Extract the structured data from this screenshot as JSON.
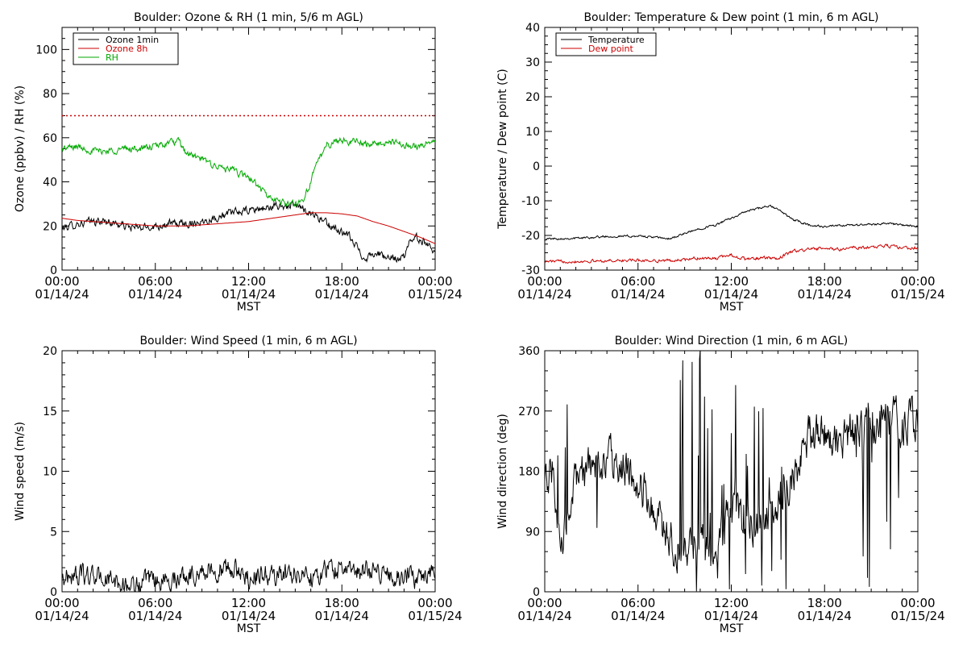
{
  "x_axis_ticks": [
    {
      "time": "00:00",
      "date": "01/14/24"
    },
    {
      "time": "06:00",
      "date": "01/14/24"
    },
    {
      "time": "12:00",
      "date": "01/14/24"
    },
    {
      "time": "18:00",
      "date": "01/14/24"
    },
    {
      "time": "00:00",
      "date": "01/15/24"
    }
  ],
  "x_axis_label": "MST",
  "chart_data": [
    {
      "type": "line",
      "title": "Boulder: Ozone & RH (1 min, 5/6 m AGL)",
      "xlabel": "MST",
      "ylabel": "Ozone (ppbv) / RH (%)",
      "xlim_hours": [
        0,
        24
      ],
      "ylim": [
        0,
        110
      ],
      "yticks": [
        0,
        20,
        40,
        60,
        80,
        100
      ],
      "legend_position": "top-left",
      "reference_line": {
        "y": 70,
        "style": "dotted",
        "color": "#cc0000"
      },
      "series": [
        {
          "name": "Ozone 1min",
          "color": "#000000",
          "noise": 1.5,
          "x": [
            0,
            1,
            2,
            3,
            4,
            5,
            6,
            7,
            8,
            9,
            10,
            11,
            12,
            13,
            14,
            15,
            15.5,
            16,
            16.5,
            17,
            17.5,
            18,
            18.5,
            19,
            19.5,
            20,
            20.5,
            21,
            21.5,
            22,
            22.5,
            23,
            23.5,
            24
          ],
          "y": [
            19,
            21,
            22,
            22,
            20,
            19,
            20,
            21,
            21,
            22,
            24,
            26,
            27,
            28,
            29,
            29,
            28,
            26,
            24,
            21,
            19,
            17,
            15,
            10,
            5,
            8,
            7,
            5,
            5,
            6,
            15,
            14,
            12,
            9
          ]
        },
        {
          "name": "Ozone 8h",
          "color": "#cc0000",
          "noise": 0,
          "x": [
            0,
            1,
            2,
            3,
            4,
            5,
            6,
            7,
            8,
            9,
            10,
            11,
            12,
            13,
            14,
            15,
            16,
            17,
            18,
            19,
            20,
            21,
            22,
            23,
            24
          ],
          "y": [
            23.5,
            22.5,
            22,
            21.5,
            21,
            20.5,
            20,
            20,
            20,
            20.5,
            21,
            21.5,
            22,
            23,
            24,
            25,
            26,
            26,
            25.5,
            24.5,
            22,
            20,
            17.5,
            15,
            12
          ]
        },
        {
          "name": "RH",
          "color": "#00aa00",
          "noise": 1.3,
          "x": [
            0,
            1,
            2,
            3,
            4,
            5,
            6,
            7,
            7.5,
            8,
            9,
            10,
            11,
            12,
            12.5,
            13,
            13.5,
            14,
            14.5,
            15,
            15.5,
            16,
            16.5,
            17,
            18,
            19,
            20,
            21,
            22,
            23,
            24
          ],
          "y": [
            55,
            56,
            54,
            54,
            55,
            55,
            56,
            58,
            58,
            53,
            50,
            47,
            45,
            42,
            39,
            35,
            32,
            31,
            30,
            30,
            32,
            40,
            50,
            57,
            59,
            58,
            57,
            58,
            57,
            56,
            59
          ]
        }
      ]
    },
    {
      "type": "line",
      "title": "Boulder: Temperature & Dew point (1 min, 6 m AGL)",
      "xlabel": "MST",
      "ylabel": "Temperature / Dew point (C)",
      "xlim_hours": [
        0,
        24
      ],
      "ylim": [
        -30,
        40
      ],
      "yticks": [
        -30,
        -20,
        -10,
        0,
        10,
        20,
        30,
        40
      ],
      "legend_position": "top-left",
      "series": [
        {
          "name": "Temperature",
          "color": "#000000",
          "noise": 0.25,
          "x": [
            0,
            2,
            4,
            6,
            7,
            8,
            9,
            10,
            11,
            12,
            13,
            14,
            14.5,
            15,
            16,
            17,
            18,
            19,
            20,
            21,
            22,
            23,
            24
          ],
          "y": [
            -21,
            -20.8,
            -20.3,
            -20.2,
            -20.5,
            -21,
            -19.5,
            -18,
            -17,
            -15,
            -13,
            -12,
            -11.5,
            -12.5,
            -15.5,
            -17,
            -17.5,
            -17.2,
            -17,
            -16.8,
            -16.5,
            -17,
            -17.5
          ]
        },
        {
          "name": "Dew point",
          "color": "#cc0000",
          "noise": 0.35,
          "x": [
            0,
            2,
            4,
            6,
            8,
            9,
            10,
            11,
            12,
            12.5,
            13,
            14,
            15,
            15.5,
            16,
            17,
            18,
            19,
            20,
            21,
            22,
            23,
            24
          ],
          "y": [
            -27.5,
            -27.5,
            -27.3,
            -27.2,
            -27.3,
            -27,
            -26.5,
            -26.7,
            -25.5,
            -26.5,
            -26.8,
            -26.5,
            -26.7,
            -25.5,
            -24.5,
            -24,
            -23.8,
            -24,
            -23.5,
            -23.5,
            -23,
            -23.5,
            -23.7
          ]
        }
      ]
    },
    {
      "type": "line",
      "title": "Boulder: Wind Speed (1 min, 6 m AGL)",
      "xlabel": "MST",
      "ylabel": "Wind speed (m/s)",
      "xlim_hours": [
        0,
        24
      ],
      "ylim": [
        0,
        20
      ],
      "yticks": [
        0,
        5,
        10,
        15,
        20
      ],
      "series": [
        {
          "name": "",
          "color": "#000000",
          "noise": 0.7,
          "x": [
            0,
            1,
            2,
            3,
            4,
            5,
            6,
            7,
            8,
            9,
            10,
            11,
            12,
            13,
            14,
            15,
            16,
            17,
            18,
            19,
            20,
            21,
            22,
            23,
            24
          ],
          "y": [
            1.2,
            1.4,
            1.3,
            1.0,
            0.5,
            0.6,
            0.9,
            1.0,
            1.4,
            1.7,
            1.8,
            1.8,
            1.2,
            1.4,
            1.3,
            1.6,
            1.3,
            1.8,
            2.0,
            1.6,
            1.7,
            1.6,
            1.0,
            1.3,
            1.8
          ]
        }
      ]
    },
    {
      "type": "line",
      "title": "Boulder: Wind Direction (1 min, 6 m AGL)",
      "xlabel": "MST",
      "ylabel": "Wind direction (deg)",
      "xlim_hours": [
        0,
        24
      ],
      "ylim": [
        0,
        360
      ],
      "yticks": [
        0,
        90,
        180,
        270,
        360
      ],
      "series": [
        {
          "name": "",
          "color": "#000000",
          "noise": 25,
          "x": [
            0,
            0.5,
            1,
            2,
            3,
            4,
            5,
            6,
            7,
            8,
            9,
            10,
            11,
            12,
            13,
            14,
            15,
            16,
            17,
            18,
            19,
            20,
            21,
            22,
            23,
            24
          ],
          "y": [
            150,
            180,
            60,
            160,
            190,
            200,
            190,
            170,
            120,
            80,
            60,
            80,
            70,
            120,
            100,
            110,
            130,
            170,
            230,
            240,
            230,
            240,
            250,
            260,
            250,
            260
          ]
        }
      ]
    }
  ]
}
